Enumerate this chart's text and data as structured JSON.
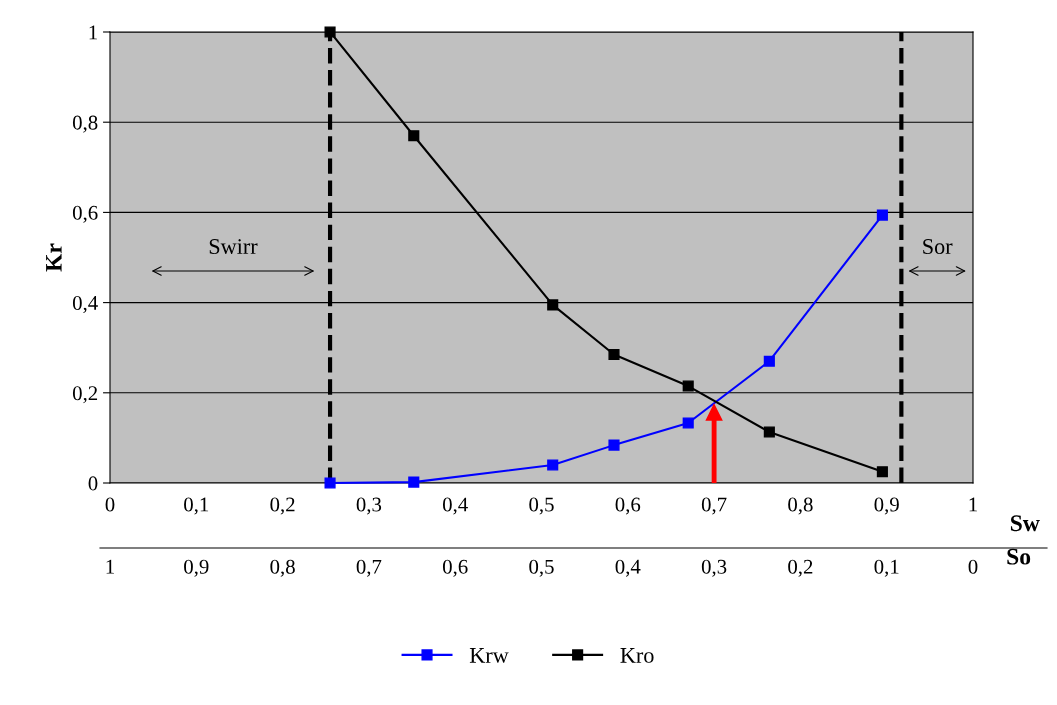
{
  "chart_data": {
    "type": "line",
    "xlabel": "Sw",
    "ylabel": "Kr",
    "x2label": "So",
    "x": [
      0.255,
      0.352,
      0.513,
      0.584,
      0.67,
      0.764,
      0.895
    ],
    "series": [
      {
        "name": "Krw",
        "color": "#0000ff",
        "values": [
          0.0,
          0.002,
          0.04,
          0.084,
          0.133,
          0.27,
          0.594
        ]
      },
      {
        "name": "Kro",
        "color": "#000000",
        "values": [
          1.0,
          0.77,
          0.395,
          0.285,
          0.215,
          0.113,
          0.025
        ]
      }
    ],
    "xlim": [
      0,
      1
    ],
    "xticks": [
      0,
      {
        "value": 0.1,
        "label": "0,1"
      },
      {
        "value": 0.2,
        "label": "0,2"
      },
      {
        "value": 0.3,
        "label": "0,3"
      },
      {
        "value": 0.4,
        "label": "0,4"
      },
      {
        "value": 0.5,
        "label": "0,5"
      },
      {
        "value": 0.6,
        "label": "0,6"
      },
      {
        "value": 0.7,
        "label": "0,7"
      },
      {
        "value": 0.8,
        "label": "0,8"
      },
      {
        "value": 0.9,
        "label": "0,9"
      },
      1
    ],
    "x2lim": [
      1,
      0
    ],
    "x2ticks": [
      1,
      {
        "value": 0.9,
        "label": "0,9"
      },
      {
        "value": 0.8,
        "label": "0,8"
      },
      {
        "value": 0.7,
        "label": "0,7"
      },
      {
        "value": 0.6,
        "label": "0,6"
      },
      {
        "value": 0.5,
        "label": "0,5"
      },
      {
        "value": 0.4,
        "label": "0,4"
      },
      {
        "value": 0.3,
        "label": "0,3"
      },
      {
        "value": 0.2,
        "label": "0,2"
      },
      {
        "value": 0.1,
        "label": "0,1"
      },
      0
    ],
    "ylim": [
      0,
      1
    ],
    "yticks": [
      0,
      {
        "value": 0.2,
        "label": "0,2"
      },
      {
        "value": 0.4,
        "label": "0,4"
      },
      {
        "value": 0.6,
        "label": "0,6"
      },
      {
        "value": 0.8,
        "label": "0,8"
      },
      1
    ],
    "ref_lines": [
      {
        "axis": "x",
        "value": 0.255,
        "color": "#000000",
        "line_style": "dashed"
      },
      {
        "axis": "x",
        "value": 0.917,
        "color": "#000000",
        "line_style": "dashed"
      },
      {
        "axis": "x",
        "value": 0.7,
        "color": "#ff0000",
        "line_style": "solid"
      }
    ],
    "annotations": [
      "Swirr",
      "Sor"
    ],
    "grid": "y",
    "legend": "bottom",
    "marker": "square",
    "line_style": "solid"
  }
}
